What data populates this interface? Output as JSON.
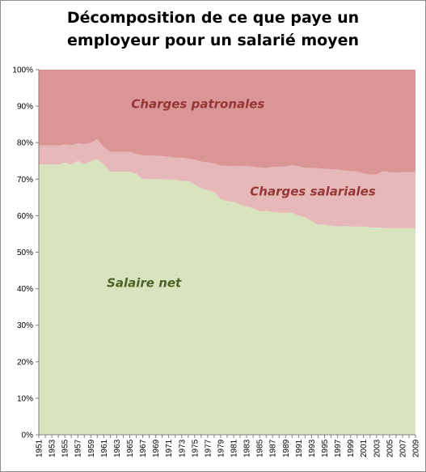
{
  "chart_data": {
    "type": "area",
    "stacked": true,
    "title_line1": "Décomposition de ce que paye un",
    "title_line2": "employeur pour un salarié moyen",
    "xlabel": "",
    "ylabel": "",
    "ylim": [
      0,
      100
    ],
    "y_ticks": [
      "0%",
      "10%",
      "20%",
      "30%",
      "40%",
      "50%",
      "60%",
      "70%",
      "80%",
      "90%",
      "100%"
    ],
    "x": [
      1951,
      1952,
      1953,
      1954,
      1955,
      1956,
      1957,
      1958,
      1959,
      1960,
      1961,
      1962,
      1963,
      1964,
      1965,
      1966,
      1967,
      1968,
      1969,
      1970,
      1971,
      1972,
      1973,
      1974,
      1975,
      1976,
      1977,
      1978,
      1979,
      1980,
      1981,
      1982,
      1983,
      1984,
      1985,
      1986,
      1987,
      1988,
      1989,
      1990,
      1991,
      1992,
      1993,
      1994,
      1995,
      1996,
      1997,
      1998,
      1999,
      2000,
      2001,
      2002,
      2003,
      2004,
      2005,
      2006,
      2007,
      2008,
      2009
    ],
    "x_tick_labels": [
      "1951",
      "1953",
      "1955",
      "1957",
      "1959",
      "1961",
      "1963",
      "1965",
      "1967",
      "1969",
      "1971",
      "1973",
      "1975",
      "1977",
      "1979",
      "1981",
      "1983",
      "1985",
      "1987",
      "1989",
      "1991",
      "1993",
      "1995",
      "1997",
      "1999",
      "2001",
      "2003",
      "2005",
      "2007",
      "2009"
    ],
    "series": [
      {
        "name": "Salaire net",
        "color": "#d7e4bd",
        "label_color": "#4f6228",
        "values": [
          74,
          74,
          74,
          74,
          74.5,
          74,
          75,
          74,
          75,
          75.5,
          74,
          72,
          72,
          72,
          72,
          71.5,
          70,
          70,
          70,
          70,
          69.8,
          69.8,
          69.5,
          69.5,
          68.5,
          67.5,
          67,
          66.5,
          64.5,
          64,
          63.8,
          63,
          62.5,
          62,
          61.2,
          61.3,
          61,
          60.8,
          60.8,
          60.8,
          60,
          59.5,
          58.5,
          57.5,
          57.5,
          57.2,
          57,
          57.2,
          57,
          57,
          57,
          56.8,
          56.7,
          56.7,
          56.6,
          56.6,
          56.6,
          56.6,
          56.6
        ]
      },
      {
        "name": "Charges salariales",
        "color": "#e6b9b8",
        "label_color": "#953735",
        "values": [
          5.2,
          5.2,
          5.2,
          5.2,
          5.0,
          5.3,
          4.8,
          5.6,
          5.0,
          5.4,
          4.8,
          5.5,
          5.5,
          5.5,
          5.5,
          5.4,
          6.5,
          6.5,
          6.4,
          6.3,
          6.3,
          6.1,
          6.3,
          6.1,
          6.8,
          7.3,
          7.6,
          7.8,
          9.2,
          9.6,
          9.7,
          10.6,
          11.1,
          11.4,
          12.0,
          11.7,
          12.3,
          12.6,
          12.7,
          13.0,
          13.5,
          13.6,
          14.6,
          15.5,
          15.3,
          15.5,
          15.6,
          15.2,
          15.2,
          15.1,
          14.6,
          14.5,
          14.6,
          15.5,
          15.3,
          15.2,
          15.3,
          15.3,
          15.3
        ]
      },
      {
        "name": "Charges patronales",
        "color": "#d99694",
        "label_color": "#953735",
        "values": [
          20.8,
          20.8,
          20.8,
          20.8,
          20.5,
          20.7,
          20.2,
          20.4,
          20.0,
          19.1,
          21.2,
          22.5,
          22.5,
          22.5,
          22.5,
          23.1,
          23.5,
          23.5,
          23.6,
          23.7,
          23.9,
          24.1,
          24.2,
          24.4,
          24.7,
          25.2,
          25.4,
          25.7,
          26.3,
          26.4,
          26.5,
          26.4,
          26.4,
          26.6,
          26.8,
          27.0,
          26.7,
          26.6,
          26.5,
          26.2,
          26.5,
          26.9,
          26.9,
          27.0,
          27.2,
          27.3,
          27.4,
          27.6,
          27.8,
          27.9,
          28.4,
          28.7,
          28.7,
          27.8,
          28.1,
          28.2,
          28.1,
          28.1,
          28.1
        ]
      }
    ],
    "grid": false,
    "legend": "none"
  }
}
